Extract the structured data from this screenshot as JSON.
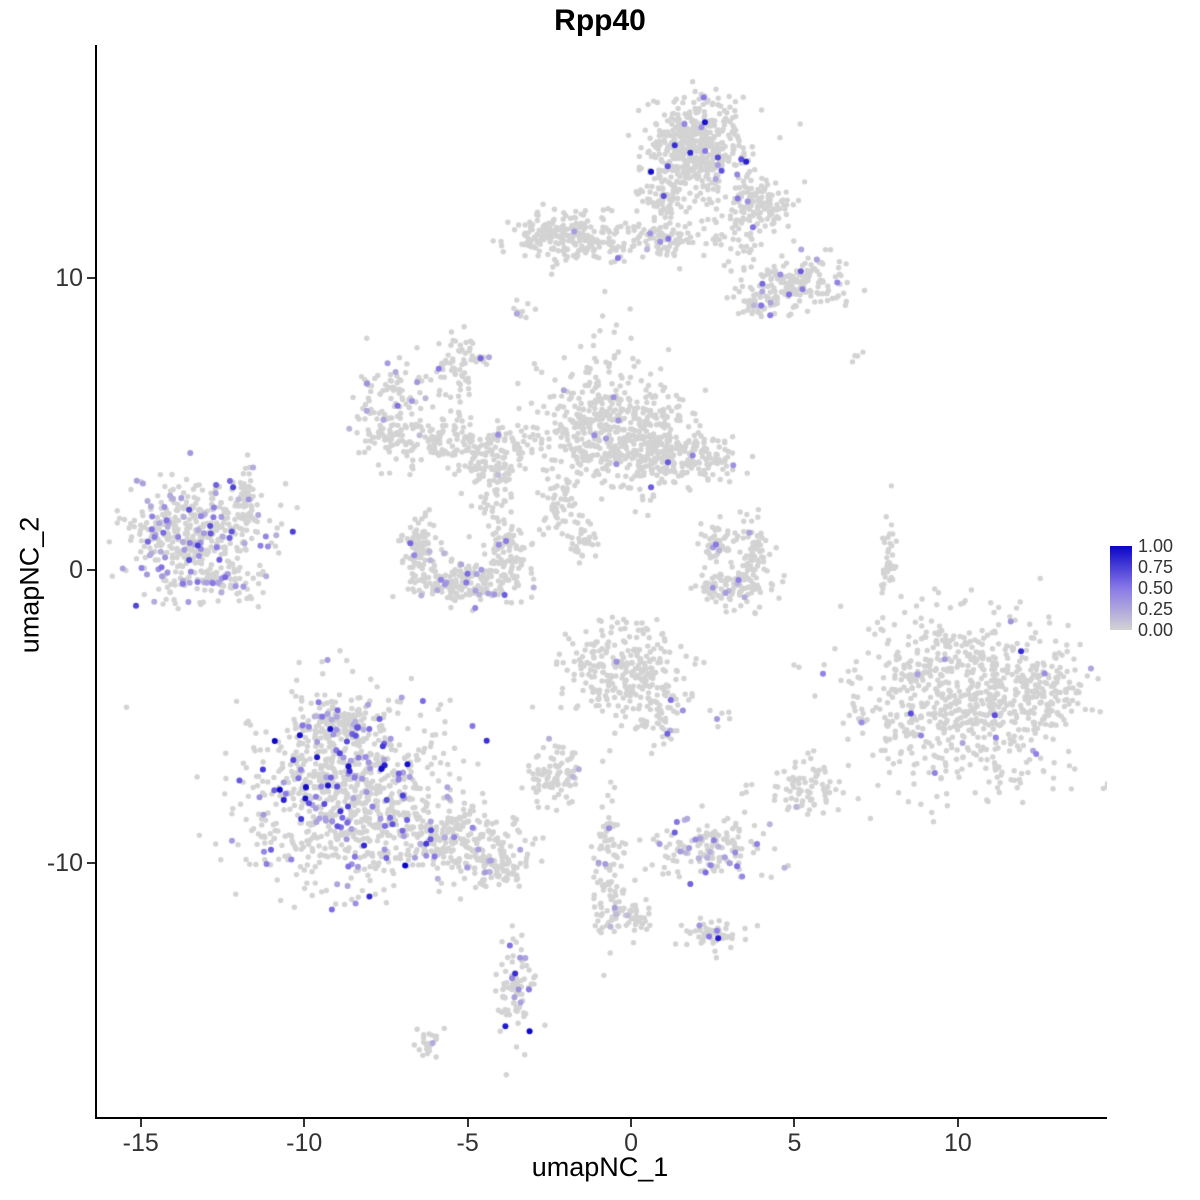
{
  "chart_data": {
    "type": "scatter",
    "title": "Rpp40",
    "xlabel": "umapNC_1",
    "ylabel": "umapNC_2",
    "xlim": [
      -16.4,
      14.5
    ],
    "ylim": [
      -18.7,
      17.95
    ],
    "xticks": [
      -15,
      -10,
      -5,
      0,
      5,
      10
    ],
    "xtick_labels": [
      "-15",
      "-10",
      "-5",
      "0",
      "5",
      "10"
    ],
    "yticks": [
      -10,
      0,
      10
    ],
    "ytick_labels": [
      "-10",
      "0",
      "10"
    ],
    "grid": false,
    "legend": {
      "position": "right",
      "labels": [
        "1.00",
        "0.75",
        "0.50",
        "0.25",
        "0.00"
      ],
      "values": [
        1.0,
        0.75,
        0.5,
        0.25,
        0.0
      ]
    },
    "colors": {
      "base_point": "#d3d3d3",
      "gradient": [
        "#d3d3d3",
        "#8878e6",
        "#0a05c8"
      ],
      "axis": "#000000",
      "text": "#333333"
    },
    "point_radius": 2.7,
    "seed": 42,
    "clusters": [
      {
        "name": "top-main",
        "cx": 1.9,
        "cy": 14.4,
        "sx": 0.75,
        "sy": 0.8,
        "n": 520,
        "frac": 0.035,
        "vmax": 1.0
      },
      {
        "name": "top-tail",
        "cx": 3.8,
        "cy": 12.5,
        "sx": 0.55,
        "sy": 0.5,
        "n": 130,
        "frac": 0.03,
        "vmax": 0.6
      },
      {
        "name": "top-lower",
        "cx": 0.9,
        "cy": 12.6,
        "sx": 0.4,
        "sy": 0.45,
        "n": 55,
        "frac": 0.02,
        "vmax": 0.5
      },
      {
        "name": "band-left",
        "cx": -1.9,
        "cy": 11.4,
        "sx": 1.0,
        "sy": 0.42,
        "n": 250,
        "frac": 0.02,
        "vmax": 0.6
      },
      {
        "name": "band-mid",
        "cx": 0.9,
        "cy": 11.3,
        "sx": 0.5,
        "sy": 0.3,
        "n": 70,
        "frac": 0.03,
        "vmax": 0.6
      },
      {
        "name": "band-right-sparse",
        "cx": 3.0,
        "cy": 11.4,
        "sx": 0.8,
        "sy": 0.5,
        "n": 55,
        "frac": 0.0,
        "vmax": 0
      },
      {
        "name": "upper-right",
        "cx": 4.95,
        "cy": 9.8,
        "sx": 0.75,
        "sy": 0.45,
        "n": 170,
        "frac": 0.05,
        "vmax": 0.7
      },
      {
        "name": "upper-right-small",
        "cx": 3.85,
        "cy": 9.1,
        "sx": 0.3,
        "sy": 0.3,
        "n": 40,
        "frac": 0.1,
        "vmax": 0.6
      },
      {
        "name": "stray-a",
        "cx": -3.3,
        "cy": 8.9,
        "sx": 0.25,
        "sy": 0.2,
        "n": 10,
        "frac": 0.1,
        "vmax": 0.5
      },
      {
        "name": "stray-b",
        "cx": 6.75,
        "cy": 7.3,
        "sx": 0.15,
        "sy": 0.15,
        "n": 4,
        "frac": 0,
        "vmax": 0
      },
      {
        "name": "stray-c",
        "cx": -0.9,
        "cy": 8.5,
        "sx": 0.35,
        "sy": 0.45,
        "n": 6,
        "frac": 0,
        "vmax": 0
      },
      {
        "name": "midleft-blob",
        "cx": -7.4,
        "cy": 5.4,
        "sx": 0.55,
        "sy": 0.85,
        "n": 150,
        "frac": 0.03,
        "vmax": 0.6
      },
      {
        "name": "midleft-arc",
        "cx": -5.9,
        "cy": 4.45,
        "sx": 0.8,
        "sy": 0.45,
        "n": 110,
        "frac": 0.02,
        "vmax": 0.5
      },
      {
        "name": "midleft-strand",
        "cx": -5.4,
        "cy": 6.8,
        "sx": 0.3,
        "sy": 0.7,
        "n": 60,
        "frac": 0.03,
        "vmax": 0.5
      },
      {
        "name": "midleft-tip",
        "cx": -4.7,
        "cy": 7.3,
        "sx": 0.15,
        "sy": 0.2,
        "n": 12,
        "frac": 0.15,
        "vmax": 0.6
      },
      {
        "name": "midleft-lower",
        "cx": -4.25,
        "cy": 4.0,
        "sx": 0.8,
        "sy": 0.5,
        "n": 100,
        "frac": 0.03,
        "vmax": 0.6
      },
      {
        "name": "midleft-drop",
        "cx": -4.3,
        "cy": 2.5,
        "sx": 0.3,
        "sy": 0.7,
        "n": 55,
        "frac": 0.02,
        "vmax": 0.4
      },
      {
        "name": "midleft-dots",
        "cx": -3.1,
        "cy": 4.45,
        "sx": 0.4,
        "sy": 0.3,
        "n": 14,
        "frac": 0,
        "vmax": 0
      },
      {
        "name": "center-main",
        "cx": -0.95,
        "cy": 4.9,
        "sx": 0.95,
        "sy": 1.15,
        "n": 420,
        "frac": 0.012,
        "vmax": 0.6
      },
      {
        "name": "center-right",
        "cx": 0.85,
        "cy": 4.15,
        "sx": 0.85,
        "sy": 0.75,
        "n": 240,
        "frac": 0.02,
        "vmax": 1.0
      },
      {
        "name": "center-tail",
        "cx": 2.35,
        "cy": 3.75,
        "sx": 0.45,
        "sy": 0.35,
        "n": 55,
        "frac": 0.06,
        "vmax": 1.0
      },
      {
        "name": "center-wisp",
        "cx": -2.2,
        "cy": 2.1,
        "sx": 0.35,
        "sy": 0.6,
        "n": 40,
        "frac": 0,
        "vmax": 0
      },
      {
        "name": "center-wisp2",
        "cx": -1.5,
        "cy": 1.0,
        "sx": 0.25,
        "sy": 0.5,
        "n": 35,
        "frac": 0,
        "vmax": 0
      },
      {
        "name": "left-main",
        "cx": -13.4,
        "cy": 1.1,
        "sx": 1.1,
        "sy": 1.0,
        "n": 470,
        "frac": 0.17,
        "vmax": 0.75
      },
      {
        "name": "left-strip",
        "cx": -11.8,
        "cy": 2.4,
        "sx": 0.2,
        "sy": 0.6,
        "n": 45,
        "frac": 0.04,
        "vmax": 0.5
      },
      {
        "name": "left-lower",
        "cx": -12.4,
        "cy": -0.5,
        "sx": 0.5,
        "sy": 0.3,
        "n": 50,
        "frac": 0.1,
        "vmax": 0.6
      },
      {
        "name": "crescent-left",
        "cx": -6.5,
        "cy": 0.75,
        "sx": 0.3,
        "sy": 0.55,
        "n": 80,
        "frac": 0.05,
        "vmax": 0.6
      },
      {
        "name": "crescent-bottom",
        "cx": -5.2,
        "cy": -0.4,
        "sx": 0.85,
        "sy": 0.4,
        "n": 200,
        "frac": 0.09,
        "vmax": 0.65
      },
      {
        "name": "crescent-right",
        "cx": -3.8,
        "cy": 0.65,
        "sx": 0.3,
        "sy": 0.5,
        "n": 75,
        "frac": 0.06,
        "vmax": 0.6
      },
      {
        "name": "midright-arm1",
        "cx": 2.5,
        "cy": 1.0,
        "sx": 0.3,
        "sy": 0.45,
        "n": 55,
        "frac": 0.04,
        "vmax": 0.6
      },
      {
        "name": "midright-bottom",
        "cx": 3.1,
        "cy": -0.65,
        "sx": 0.55,
        "sy": 0.35,
        "n": 90,
        "frac": 0.04,
        "vmax": 0.6
      },
      {
        "name": "midright-arm2",
        "cx": 3.7,
        "cy": 0.5,
        "sx": 0.3,
        "sy": 0.6,
        "n": 70,
        "frac": 0.03,
        "vmax": 0.5
      },
      {
        "name": "sliver",
        "cx": 7.8,
        "cy": 0.25,
        "sx": 0.15,
        "sy": 0.9,
        "n": 40,
        "frac": 0,
        "vmax": 0
      },
      {
        "name": "cbottom-main",
        "cx": -0.35,
        "cy": -3.35,
        "sx": 0.9,
        "sy": 0.85,
        "n": 260,
        "frac": 0.012,
        "vmax": 1.0
      },
      {
        "name": "cbottom-tail",
        "cx": 0.9,
        "cy": -4.85,
        "sx": 0.4,
        "sy": 0.5,
        "n": 70,
        "frac": 0.03,
        "vmax": 0.6
      },
      {
        "name": "cbottom-dots",
        "cx": 2.65,
        "cy": -5.0,
        "sx": 0.2,
        "sy": 0.15,
        "n": 6,
        "frac": 0.2,
        "vmax": 0.55
      },
      {
        "name": "small-mid",
        "cx": -2.4,
        "cy": -6.95,
        "sx": 0.4,
        "sy": 0.5,
        "n": 85,
        "frac": 0.06,
        "vmax": 0.6
      },
      {
        "name": "bottomleft-core",
        "cx": -8.75,
        "cy": -7.7,
        "sx": 1.55,
        "sy": 1.45,
        "n": 850,
        "frac": 0.14,
        "vmax": 1.0
      },
      {
        "name": "bottomleft-top",
        "cx": -8.9,
        "cy": -5.2,
        "sx": 0.6,
        "sy": 0.4,
        "n": 120,
        "frac": 0.12,
        "vmax": 0.7
      },
      {
        "name": "bottomleft-tail",
        "cx": -5.4,
        "cy": -9.3,
        "sx": 1.1,
        "sy": 0.6,
        "n": 220,
        "frac": 0.08,
        "vmax": 0.7
      },
      {
        "name": "bottomleft-tip",
        "cx": -4.15,
        "cy": -10.2,
        "sx": 0.5,
        "sy": 0.35,
        "n": 70,
        "frac": 0.03,
        "vmax": 0.5
      },
      {
        "name": "bottomleft-halo",
        "cx": -8.7,
        "cy": -7.6,
        "sx": 2.6,
        "sy": 2.3,
        "n": 50,
        "frac": 0.04,
        "vmax": 0.5
      },
      {
        "name": "right-main",
        "cx": 10.1,
        "cy": -4.45,
        "sx": 1.7,
        "sy": 1.45,
        "n": 760,
        "frac": 0.013,
        "vmax": 1.0
      },
      {
        "name": "right-east",
        "cx": 12.5,
        "cy": -4.1,
        "sx": 0.5,
        "sy": 0.6,
        "n": 90,
        "frac": 0.03,
        "vmax": 1.0
      },
      {
        "name": "small-right",
        "cx": 5.2,
        "cy": -7.4,
        "sx": 0.45,
        "sy": 0.5,
        "n": 75,
        "frac": 0.01,
        "vmax": 0.4
      },
      {
        "name": "purple-pair",
        "cx": 3.4,
        "cy": -7.5,
        "sx": 0.12,
        "sy": 0.12,
        "n": 3,
        "frac": 0.6,
        "vmax": 0.6
      },
      {
        "name": "bottom-mid",
        "cx": 2.4,
        "cy": -9.45,
        "sx": 0.85,
        "sy": 0.5,
        "n": 150,
        "frac": 0.2,
        "vmax": 0.65
      },
      {
        "name": "strip-vert",
        "cx": -0.75,
        "cy": -10.5,
        "sx": 0.25,
        "sy": 1.3,
        "n": 110,
        "frac": 0.04,
        "vmax": 0.6
      },
      {
        "name": "blob-q",
        "cx": 0.0,
        "cy": -11.8,
        "sx": 0.35,
        "sy": 0.3,
        "n": 45,
        "frac": 0.05,
        "vmax": 0.5
      },
      {
        "name": "blob-r",
        "cx": 2.3,
        "cy": -12.5,
        "sx": 0.45,
        "sy": 0.3,
        "n": 55,
        "frac": 0.1,
        "vmax": 1.0
      },
      {
        "name": "teardrop",
        "cx": -3.6,
        "cy": -14.3,
        "sx": 0.3,
        "sy": 0.95,
        "n": 85,
        "frac": 0.09,
        "vmax": 1.0
      },
      {
        "name": "tiny-bottom",
        "cx": -6.2,
        "cy": -16.2,
        "sx": 0.25,
        "sy": 0.2,
        "n": 22,
        "frac": 0.08,
        "vmax": 0.55
      }
    ]
  }
}
